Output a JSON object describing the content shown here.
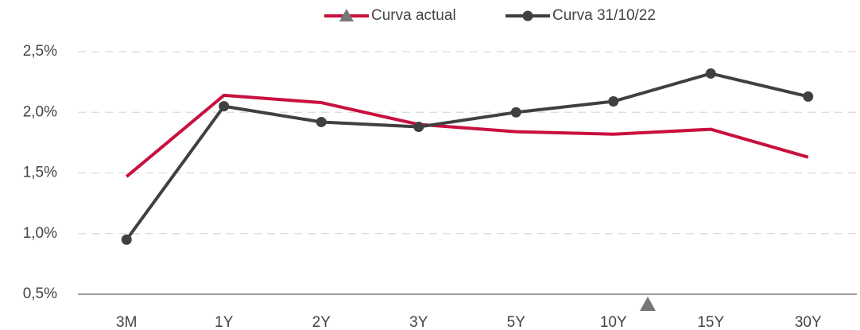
{
  "chart_data": {
    "type": "line",
    "categories": [
      "3M",
      "1Y",
      "2Y",
      "3Y",
      "5Y",
      "10Y",
      "15Y",
      "30Y"
    ],
    "series": [
      {
        "name": "Curva actual",
        "color": "#c8103e",
        "values": [
          1.47,
          2.14,
          2.08,
          1.9,
          1.84,
          1.82,
          1.86,
          1.63
        ]
      },
      {
        "name": "Curva 31/10/22",
        "color": "#404040",
        "values": [
          0.95,
          2.05,
          1.92,
          1.88,
          2.0,
          2.09,
          2.32,
          2.13
        ]
      }
    ],
    "ylim": [
      0.5,
      2.5
    ],
    "yticks": [
      {
        "value": 0.5,
        "label": "0,5%"
      },
      {
        "value": 1.0,
        "label": "1,0%"
      },
      {
        "value": 1.5,
        "label": "1,5%"
      },
      {
        "value": 2.0,
        "label": "2,0%"
      },
      {
        "value": 2.5,
        "label": "2,5%"
      }
    ],
    "grid": true,
    "legend": "top"
  }
}
